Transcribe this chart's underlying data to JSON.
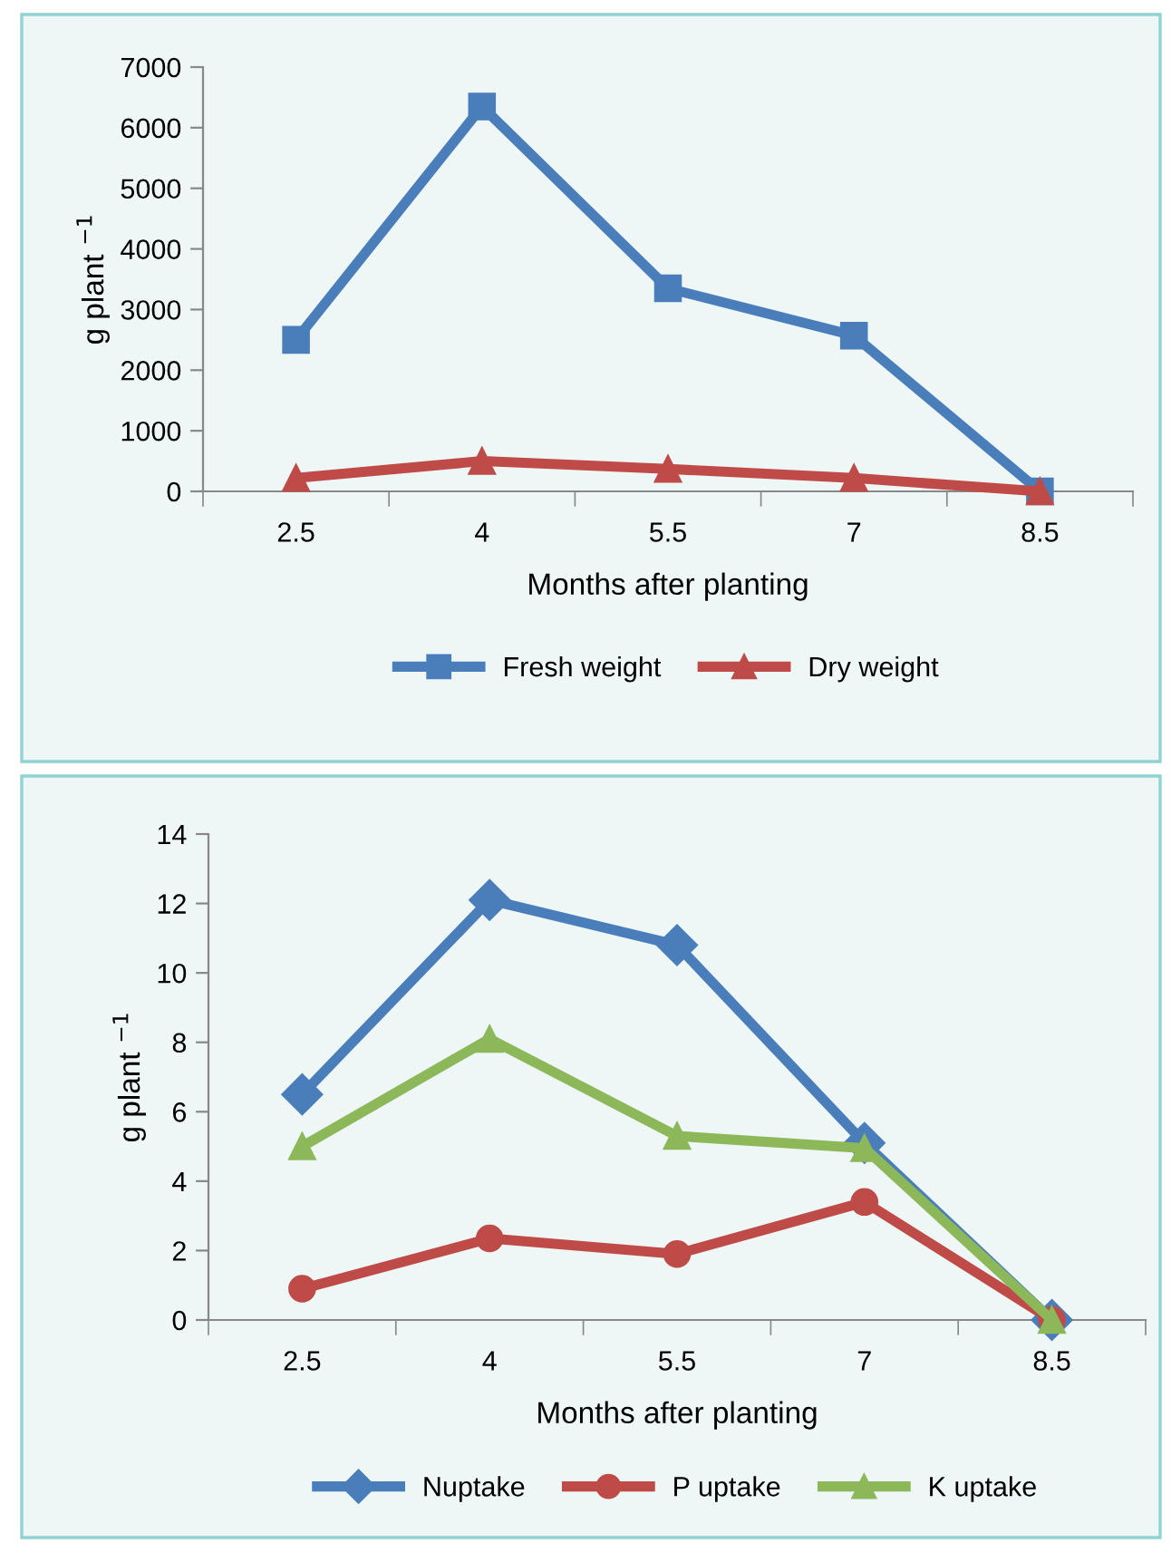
{
  "chart_data": [
    {
      "type": "line",
      "categories": [
        "2.5",
        "4",
        "5.5",
        "7",
        "8.5"
      ],
      "xlabel": "Months after planting",
      "ylabel": "g plant $^{−1}$",
      "ylim": [
        0,
        7000
      ],
      "yticks": [
        0,
        1000,
        2000,
        3000,
        4000,
        5000,
        6000,
        7000
      ],
      "grid": false,
      "legend": "bottom",
      "series": [
        {
          "name": "Fresh weight",
          "color": "#4a7ebb",
          "marker": "square",
          "values": [
            2500,
            6350,
            3350,
            2570,
            0
          ]
        },
        {
          "name": "Dry weight",
          "color": "#be4b48",
          "marker": "triangle",
          "values": [
            220,
            500,
            370,
            220,
            0
          ]
        }
      ]
    },
    {
      "type": "line",
      "categories": [
        "2.5",
        "4",
        "5.5",
        "7",
        "8.5"
      ],
      "xlabel": "Months after planting",
      "ylabel": "g plant $^{−1}$",
      "ylim": [
        0,
        14
      ],
      "yticks": [
        0,
        2,
        4,
        6,
        8,
        10,
        12,
        14
      ],
      "grid": false,
      "legend": "bottom",
      "series": [
        {
          "name": "Nuptake",
          "color": "#4a7ebb",
          "marker": "diamond",
          "values": [
            6.5,
            12.1,
            10.8,
            5.1,
            0
          ]
        },
        {
          "name": "P uptake",
          "color": "#be4b48",
          "marker": "circle",
          "values": [
            0.9,
            2.35,
            1.9,
            3.4,
            0
          ]
        },
        {
          "name": "K uptake",
          "color": "#8cb85a",
          "marker": "triangle",
          "values": [
            5.0,
            8.1,
            5.3,
            4.95,
            0
          ]
        }
      ]
    }
  ]
}
